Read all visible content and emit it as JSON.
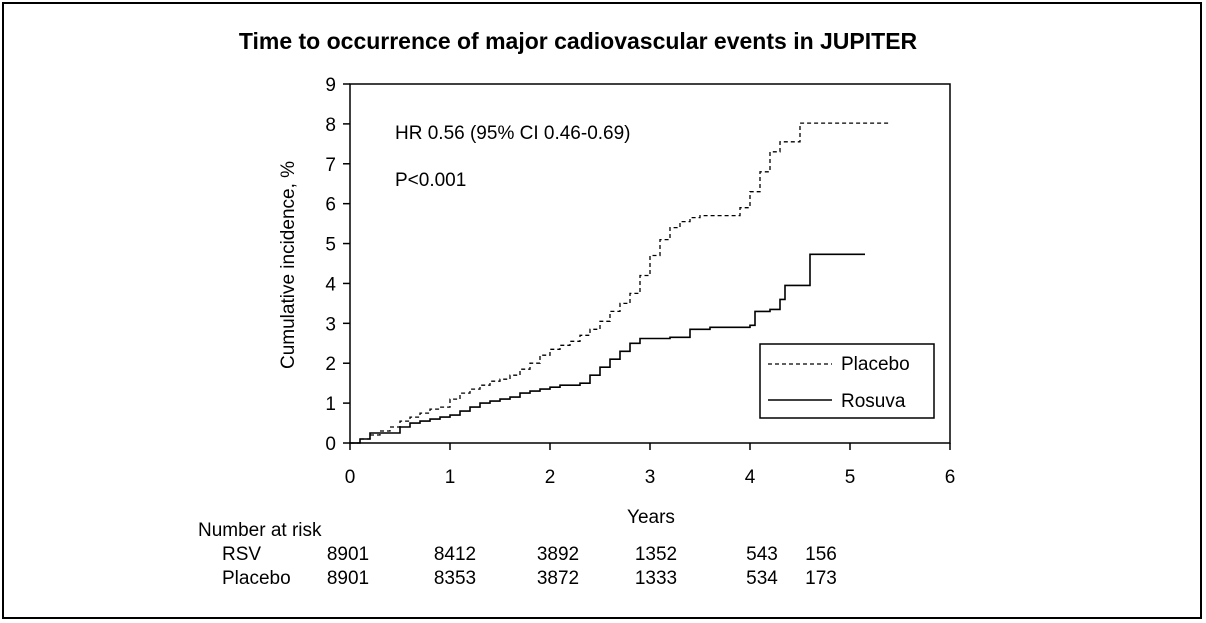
{
  "chart_data": {
    "type": "line",
    "title": "Time to occurrence of major cadiovascular events in JUPITER",
    "xlabel": "Years",
    "ylabel": "Cumulative incidence, %",
    "xlim": [
      0,
      6
    ],
    "ylim": [
      0,
      9
    ],
    "x_ticks": [
      "0",
      "1",
      "2",
      "3",
      "4",
      "5",
      "6"
    ],
    "y_ticks": [
      "0",
      "1",
      "2",
      "3",
      "4",
      "5",
      "6",
      "7",
      "8",
      "9"
    ],
    "annotations": [
      "HR 0.56 (95% CI 0.46-0.69)",
      "P<0.001"
    ],
    "legend_position": "bottom-right",
    "grid": false,
    "series": [
      {
        "name": "Placebo",
        "style": "dashed",
        "points": [
          [
            0,
            0
          ],
          [
            0.1,
            0.1
          ],
          [
            0.2,
            0.2
          ],
          [
            0.3,
            0.3
          ],
          [
            0.4,
            0.4
          ],
          [
            0.5,
            0.55
          ],
          [
            0.6,
            0.65
          ],
          [
            0.7,
            0.75
          ],
          [
            0.8,
            0.85
          ],
          [
            0.9,
            0.9
          ],
          [
            1.0,
            1.1
          ],
          [
            1.1,
            1.25
          ],
          [
            1.2,
            1.35
          ],
          [
            1.3,
            1.45
          ],
          [
            1.4,
            1.55
          ],
          [
            1.5,
            1.6
          ],
          [
            1.6,
            1.7
          ],
          [
            1.7,
            1.85
          ],
          [
            1.8,
            2.0
          ],
          [
            1.9,
            2.2
          ],
          [
            2.0,
            2.35
          ],
          [
            2.1,
            2.45
          ],
          [
            2.2,
            2.55
          ],
          [
            2.3,
            2.7
          ],
          [
            2.4,
            2.85
          ],
          [
            2.5,
            3.05
          ],
          [
            2.6,
            3.3
          ],
          [
            2.7,
            3.5
          ],
          [
            2.8,
            3.75
          ],
          [
            2.9,
            4.2
          ],
          [
            3.0,
            4.7
          ],
          [
            3.1,
            5.1
          ],
          [
            3.2,
            5.4
          ],
          [
            3.3,
            5.55
          ],
          [
            3.4,
            5.65
          ],
          [
            3.5,
            5.7
          ],
          [
            3.6,
            5.7
          ],
          [
            3.8,
            5.7
          ],
          [
            3.9,
            5.9
          ],
          [
            4.0,
            6.3
          ],
          [
            4.1,
            6.8
          ],
          [
            4.2,
            7.3
          ],
          [
            4.3,
            7.55
          ],
          [
            4.45,
            7.55
          ],
          [
            4.5,
            8.02
          ],
          [
            5.4,
            8.02
          ]
        ]
      },
      {
        "name": "Rosuva",
        "style": "solid",
        "points": [
          [
            0,
            0
          ],
          [
            0.1,
            0.1
          ],
          [
            0.2,
            0.25
          ],
          [
            0.45,
            0.25
          ],
          [
            0.5,
            0.4
          ],
          [
            0.6,
            0.5
          ],
          [
            0.7,
            0.55
          ],
          [
            0.8,
            0.6
          ],
          [
            0.9,
            0.65
          ],
          [
            1.0,
            0.7
          ],
          [
            1.1,
            0.8
          ],
          [
            1.2,
            0.9
          ],
          [
            1.3,
            1.0
          ],
          [
            1.4,
            1.05
          ],
          [
            1.5,
            1.1
          ],
          [
            1.6,
            1.15
          ],
          [
            1.7,
            1.25
          ],
          [
            1.8,
            1.3
          ],
          [
            1.9,
            1.35
          ],
          [
            2.0,
            1.4
          ],
          [
            2.1,
            1.45
          ],
          [
            2.3,
            1.5
          ],
          [
            2.4,
            1.7
          ],
          [
            2.5,
            1.9
          ],
          [
            2.6,
            2.1
          ],
          [
            2.7,
            2.3
          ],
          [
            2.8,
            2.5
          ],
          [
            2.9,
            2.62
          ],
          [
            3.2,
            2.65
          ],
          [
            3.4,
            2.85
          ],
          [
            3.6,
            2.9
          ],
          [
            4.0,
            2.95
          ],
          [
            4.05,
            3.3
          ],
          [
            4.2,
            3.35
          ],
          [
            4.3,
            3.6
          ],
          [
            4.35,
            3.95
          ],
          [
            4.6,
            4.73
          ],
          [
            5.15,
            4.73
          ]
        ]
      }
    ],
    "number_at_risk": {
      "heading": "Number at risk",
      "rows": [
        {
          "label": "RSV",
          "values": [
            "8901",
            "8412",
            "3892",
            "1352",
            "543",
            "156"
          ]
        },
        {
          "label": "Placebo",
          "values": [
            "8901",
            "8353",
            "3872",
            "1333",
            "534",
            "173"
          ]
        }
      ]
    }
  }
}
